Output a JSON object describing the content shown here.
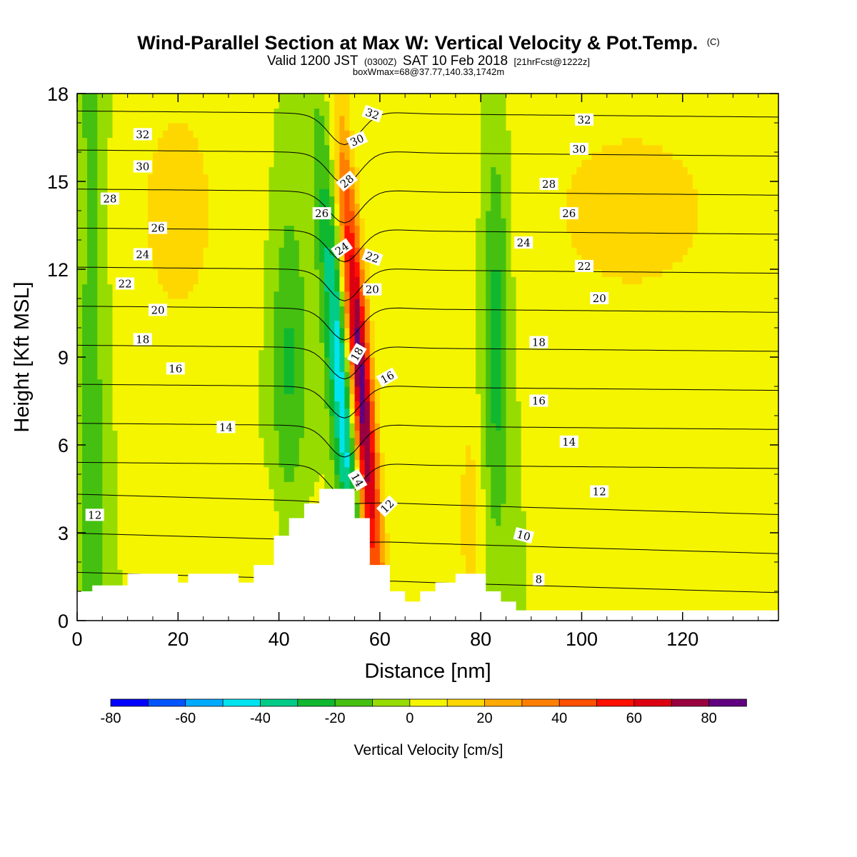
{
  "chart_data": {
    "type": "heatmap",
    "title": "Wind-Parallel Section at Max W: Vertical Velocity & Pot.Temp.",
    "title_mark": "(C)",
    "subtitle": {
      "valid": "Valid 1200 JST",
      "zulu": "(0300Z)",
      "date": "SAT 10 Feb 2018",
      "forecast": "[21hrFcst@1222z]"
    },
    "box_info": "boxWmax=68@37.77,140.33,1742m",
    "xlabel": "Distance [nm]",
    "ylabel": "Height [Kft MSL]",
    "xlim": [
      0,
      139
    ],
    "ylim": [
      0,
      18
    ],
    "x_ticks": [
      0,
      20,
      40,
      60,
      80,
      100,
      120
    ],
    "y_ticks": [
      0,
      3,
      6,
      9,
      12,
      15,
      18
    ],
    "colorbar": {
      "label": "Vertical Velocity [cm/s]",
      "tick_labels": [
        -80,
        -60,
        -40,
        -20,
        0,
        20,
        40,
        60,
        80
      ],
      "levels": [
        -80,
        -70,
        -60,
        -50,
        -40,
        -30,
        -20,
        -10,
        0,
        10,
        20,
        30,
        40,
        50,
        60,
        70,
        80,
        90
      ],
      "colors": [
        "#0000ff",
        "#0055ff",
        "#00aaff",
        "#00e4f0",
        "#00cc88",
        "#10b830",
        "#45c010",
        "#96dc00",
        "#f5f500",
        "#ffd700",
        "#ffaa00",
        "#ff8000",
        "#ff5000",
        "#ff1000",
        "#dd0010",
        "#990040",
        "#600080"
      ]
    },
    "terrain": [
      [
        0,
        1.0
      ],
      [
        3,
        1.0
      ],
      [
        3,
        1.2
      ],
      [
        10,
        1.2
      ],
      [
        10,
        1.6
      ],
      [
        20,
        1.6
      ],
      [
        20,
        1.3
      ],
      [
        22,
        1.3
      ],
      [
        22,
        1.6
      ],
      [
        32,
        1.6
      ],
      [
        32,
        1.3
      ],
      [
        35,
        1.3
      ],
      [
        35,
        1.9
      ],
      [
        39,
        1.9
      ],
      [
        39,
        2.9
      ],
      [
        42,
        2.9
      ],
      [
        42,
        3.5
      ],
      [
        45,
        3.5
      ],
      [
        45,
        4.0
      ],
      [
        48,
        4.0
      ],
      [
        48,
        4.5
      ],
      [
        55,
        4.5
      ],
      [
        55,
        3.5
      ],
      [
        58,
        3.5
      ],
      [
        58,
        1.9
      ],
      [
        62,
        1.9
      ],
      [
        62,
        1.0
      ],
      [
        65,
        1.0
      ],
      [
        65,
        0.65
      ],
      [
        68,
        0.65
      ],
      [
        68,
        1.0
      ],
      [
        71,
        1.0
      ],
      [
        71,
        1.3
      ],
      [
        75,
        1.3
      ],
      [
        75,
        1.6
      ],
      [
        81,
        1.6
      ],
      [
        81,
        1.0
      ],
      [
        84,
        1.0
      ],
      [
        84,
        0.65
      ],
      [
        87,
        0.65
      ],
      [
        87,
        0.35
      ],
      [
        139,
        0.35
      ]
    ],
    "theta_contours": [
      8,
      10,
      12,
      14,
      16,
      18,
      20,
      22,
      24,
      26,
      28,
      30,
      32
    ],
    "contour_labels": [
      {
        "text": "32",
        "x": 13,
        "y": 16.6
      },
      {
        "text": "30",
        "x": 13,
        "y": 15.5
      },
      {
        "text": "28",
        "x": 6.5,
        "y": 14.4
      },
      {
        "text": "26",
        "x": 16,
        "y": 13.4
      },
      {
        "text": "24",
        "x": 13,
        "y": 12.5
      },
      {
        "text": "22",
        "x": 9.5,
        "y": 11.5
      },
      {
        "text": "20",
        "x": 16,
        "y": 10.6
      },
      {
        "text": "18",
        "x": 13,
        "y": 9.6
      },
      {
        "text": "16",
        "x": 19.5,
        "y": 8.6
      },
      {
        "text": "14",
        "x": 29.5,
        "y": 6.6
      },
      {
        "text": "12",
        "x": 3.5,
        "y": 3.6
      },
      {
        "text": "26",
        "x": 48.5,
        "y": 13.9
      },
      {
        "text": "24",
        "x": 52.5,
        "y": 12.7,
        "rot": -35
      },
      {
        "text": "28",
        "x": 53.5,
        "y": 15.0,
        "rot": -40
      },
      {
        "text": "30",
        "x": 55.5,
        "y": 16.4,
        "rot": -25
      },
      {
        "text": "32",
        "x": 58.5,
        "y": 17.3,
        "rot": 20
      },
      {
        "text": "22",
        "x": 58.5,
        "y": 12.4,
        "rot": 20
      },
      {
        "text": "20",
        "x": 58.5,
        "y": 11.3
      },
      {
        "text": "18",
        "x": 55.5,
        "y": 9.1,
        "rot": -60
      },
      {
        "text": "16",
        "x": 61.5,
        "y": 8.3,
        "rot": -30
      },
      {
        "text": "14",
        "x": 55.5,
        "y": 4.8,
        "rot": 60
      },
      {
        "text": "12",
        "x": 61.5,
        "y": 3.9,
        "rot": -45
      },
      {
        "text": "10",
        "x": 88.5,
        "y": 2.9,
        "rot": 15
      },
      {
        "text": "8",
        "x": 91.5,
        "y": 1.4
      },
      {
        "text": "32",
        "x": 100.5,
        "y": 17.1
      },
      {
        "text": "30",
        "x": 99.5,
        "y": 16.1
      },
      {
        "text": "28",
        "x": 93.5,
        "y": 14.9
      },
      {
        "text": "26",
        "x": 97.5,
        "y": 13.9
      },
      {
        "text": "24",
        "x": 88.5,
        "y": 12.9
      },
      {
        "text": "22",
        "x": 100.5,
        "y": 12.1
      },
      {
        "text": "20",
        "x": 103.5,
        "y": 11.0
      },
      {
        "text": "18",
        "x": 91.5,
        "y": 9.5
      },
      {
        "text": "16",
        "x": 91.5,
        "y": 7.5
      },
      {
        "text": "14",
        "x": 97.5,
        "y": 6.1
      },
      {
        "text": "12",
        "x": 103.5,
        "y": 4.4
      }
    ]
  }
}
